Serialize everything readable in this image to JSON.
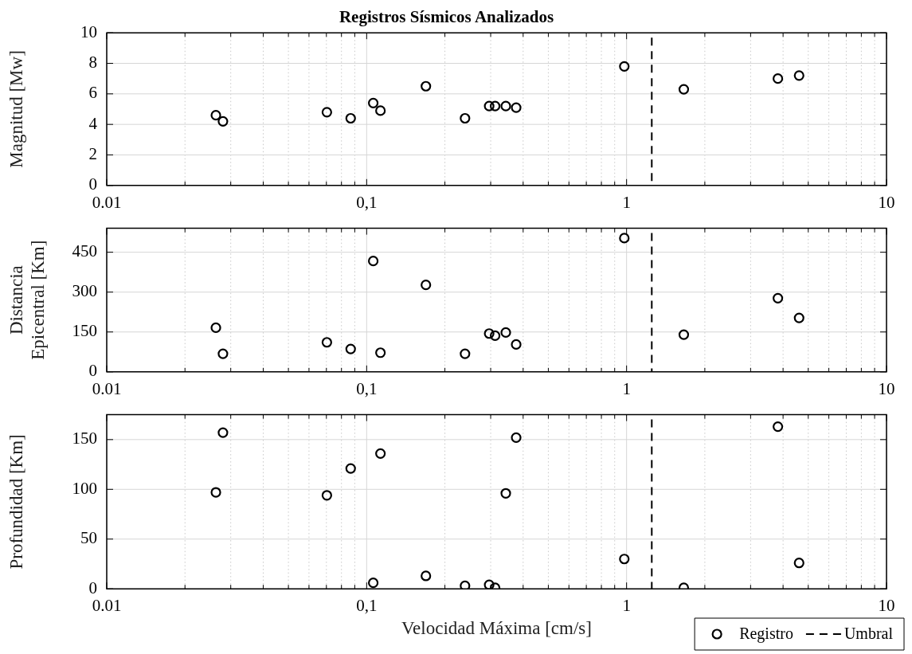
{
  "chart_data": [
    {
      "type": "scatter",
      "title": "Registros Sísmicos Analizados",
      "ylabel": "Magnitud [Mw]",
      "log": "x",
      "grid": true,
      "marker": "circle",
      "x": [
        0.0263,
        0.028,
        0.0703,
        0.0868,
        0.106,
        0.113,
        0.169,
        0.239,
        0.296,
        0.312,
        0.343,
        0.376,
        0.98,
        1.66,
        3.82,
        4.61
      ],
      "series": [
        {
          "color": "#000000",
          "values": [
            4.6,
            4.2,
            4.8,
            4.4,
            5.4,
            4.9,
            6.5,
            4.4,
            5.2,
            5.2,
            5.2,
            5.1,
            7.8,
            6.3,
            7.0,
            7.2
          ]
        }
      ],
      "xlim": [
        0.01,
        10
      ],
      "xticks": [
        0.01,
        {
          "value": 0.02,
          "label": null
        },
        {
          "value": 0.03,
          "label": null
        },
        {
          "value": 0.04,
          "label": null
        },
        {
          "value": 0.05,
          "label": null
        },
        {
          "value": 0.06,
          "label": null
        },
        {
          "value": 0.07,
          "label": null
        },
        {
          "value": 0.08,
          "label": null
        },
        {
          "value": 0.09,
          "label": null
        },
        {
          "value": 0.1,
          "label": "0,1"
        },
        {
          "value": 0.2,
          "label": null
        },
        {
          "value": 0.3,
          "label": null
        },
        {
          "value": 0.4,
          "label": null
        },
        {
          "value": 0.5,
          "label": null
        },
        {
          "value": 0.6,
          "label": null
        },
        {
          "value": 0.7,
          "label": null
        },
        {
          "value": 0.8,
          "label": null
        },
        {
          "value": 0.9,
          "label": null
        },
        1,
        {
          "value": 2,
          "label": null
        },
        {
          "value": 3,
          "label": null
        },
        {
          "value": 4,
          "label": null
        },
        {
          "value": 5,
          "label": null
        },
        {
          "value": 6,
          "label": null
        },
        {
          "value": 7,
          "label": null
        },
        {
          "value": 8,
          "label": null
        },
        {
          "value": 9,
          "label": null
        },
        10
      ],
      "ylim": [
        0,
        10
      ],
      "yticks": [
        0,
        2,
        4,
        6,
        8,
        10
      ],
      "ref_lines": [
        {
          "axis": "x",
          "value": 1.25,
          "color": "#000000",
          "line_style": "dashed"
        }
      ]
    },
    {
      "type": "scatter",
      "ylabel": "Distancia Epicentral [Km]",
      "log": "x",
      "grid": true,
      "marker": "circle",
      "x": [
        0.0263,
        0.028,
        0.0703,
        0.0868,
        0.106,
        0.113,
        0.169,
        0.239,
        0.296,
        0.312,
        0.343,
        0.376,
        0.98,
        1.66,
        3.82,
        4.61
      ],
      "series": [
        {
          "color": "#000000",
          "values": [
            166,
            68,
            111,
            86,
            417,
            72,
            327,
            68,
            144,
            136,
            148,
            103,
            503,
            140,
            277,
            203
          ]
        }
      ],
      "xlim": [
        0.01,
        10
      ],
      "xticks": [
        0.01,
        {
          "value": 0.02,
          "label": null
        },
        {
          "value": 0.03,
          "label": null
        },
        {
          "value": 0.04,
          "label": null
        },
        {
          "value": 0.05,
          "label": null
        },
        {
          "value": 0.06,
          "label": null
        },
        {
          "value": 0.07,
          "label": null
        },
        {
          "value": 0.08,
          "label": null
        },
        {
          "value": 0.09,
          "label": null
        },
        {
          "value": 0.1,
          "label": "0,1"
        },
        {
          "value": 0.2,
          "label": null
        },
        {
          "value": 0.3,
          "label": null
        },
        {
          "value": 0.4,
          "label": null
        },
        {
          "value": 0.5,
          "label": null
        },
        {
          "value": 0.6,
          "label": null
        },
        {
          "value": 0.7,
          "label": null
        },
        {
          "value": 0.8,
          "label": null
        },
        {
          "value": 0.9,
          "label": null
        },
        1,
        {
          "value": 2,
          "label": null
        },
        {
          "value": 3,
          "label": null
        },
        {
          "value": 4,
          "label": null
        },
        {
          "value": 5,
          "label": null
        },
        {
          "value": 6,
          "label": null
        },
        {
          "value": 7,
          "label": null
        },
        {
          "value": 8,
          "label": null
        },
        {
          "value": 9,
          "label": null
        },
        10
      ],
      "ylim": [
        0,
        540
      ],
      "yticks": [
        0,
        150,
        300,
        450
      ],
      "ref_lines": [
        {
          "axis": "x",
          "value": 1.25,
          "color": "#000000",
          "line_style": "dashed"
        }
      ]
    },
    {
      "type": "scatter",
      "xlabel": "Velocidad Máxima [cm/s]",
      "ylabel": "Profundidad [Km]",
      "log": "x",
      "grid": true,
      "marker": "circle",
      "legend": "bottom right",
      "x": [
        0.0263,
        0.028,
        0.0703,
        0.0868,
        0.106,
        0.113,
        0.169,
        0.239,
        0.296,
        0.312,
        0.343,
        0.376,
        0.98,
        1.66,
        3.82,
        4.61
      ],
      "series": [
        {
          "name": "Registro",
          "color": "#000000",
          "values": [
            97,
            157,
            94,
            121,
            6,
            136,
            13,
            3,
            4,
            1,
            96,
            152,
            30,
            1,
            163,
            26
          ]
        }
      ],
      "xlim": [
        0.01,
        10
      ],
      "xticks": [
        0.01,
        {
          "value": 0.02,
          "label": null
        },
        {
          "value": 0.03,
          "label": null
        },
        {
          "value": 0.04,
          "label": null
        },
        {
          "value": 0.05,
          "label": null
        },
        {
          "value": 0.06,
          "label": null
        },
        {
          "value": 0.07,
          "label": null
        },
        {
          "value": 0.08,
          "label": null
        },
        {
          "value": 0.09,
          "label": null
        },
        {
          "value": 0.1,
          "label": "0,1"
        },
        {
          "value": 0.2,
          "label": null
        },
        {
          "value": 0.3,
          "label": null
        },
        {
          "value": 0.4,
          "label": null
        },
        {
          "value": 0.5,
          "label": null
        },
        {
          "value": 0.6,
          "label": null
        },
        {
          "value": 0.7,
          "label": null
        },
        {
          "value": 0.8,
          "label": null
        },
        {
          "value": 0.9,
          "label": null
        },
        1,
        {
          "value": 2,
          "label": null
        },
        {
          "value": 3,
          "label": null
        },
        {
          "value": 4,
          "label": null
        },
        {
          "value": 5,
          "label": null
        },
        {
          "value": 6,
          "label": null
        },
        {
          "value": 7,
          "label": null
        },
        {
          "value": 8,
          "label": null
        },
        {
          "value": 9,
          "label": null
        },
        10
      ],
      "ylim": [
        0,
        175
      ],
      "yticks": [
        0,
        50,
        100,
        150
      ],
      "ref_lines": [
        {
          "axis": "x",
          "value": 1.25,
          "label": "Umbral",
          "color": "#000000",
          "line_style": "dashed"
        }
      ]
    }
  ]
}
